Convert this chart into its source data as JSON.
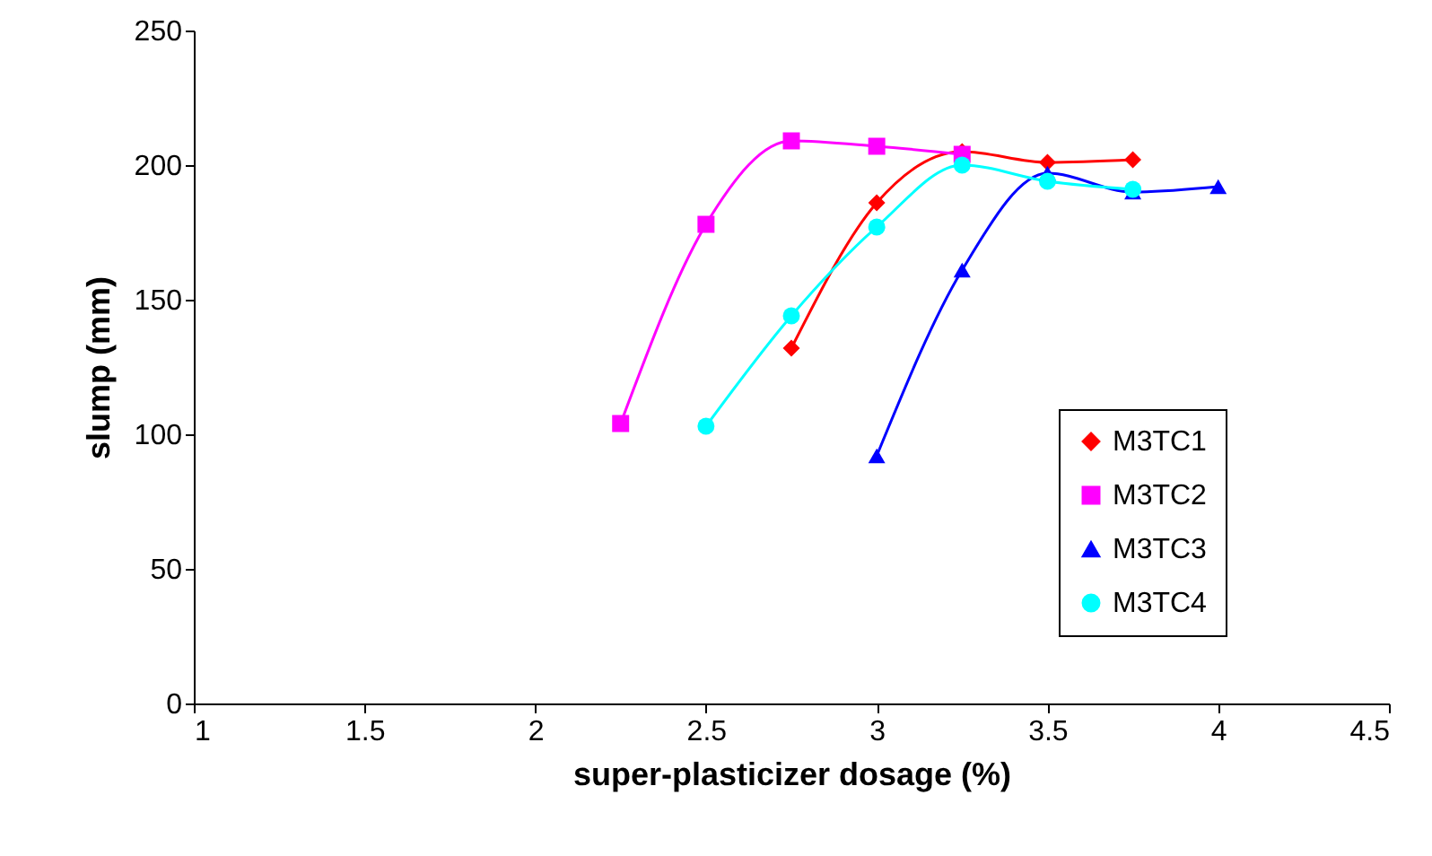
{
  "chart_data": {
    "type": "line",
    "xlabel": "super-plasticizer dosage (%)",
    "ylabel": "slump (mm)",
    "xlim": [
      1,
      4.5
    ],
    "xticks": [
      1,
      1.5,
      2,
      2.5,
      3,
      3.5,
      4,
      4.5
    ],
    "ylim": [
      0,
      250
    ],
    "yticks": [
      0,
      50,
      100,
      150,
      200,
      250
    ],
    "legend": "bottom right",
    "line_style": "solid",
    "series": [
      {
        "name": "M3TC1",
        "color": "#ff0000",
        "marker": "diamond",
        "x": [
          2.75,
          3,
          3.25,
          3.5,
          3.75
        ],
        "values": [
          132,
          186,
          205,
          201,
          202
        ]
      },
      {
        "name": "M3TC2",
        "color": "#ff00ff",
        "marker": "square",
        "x": [
          2.25,
          2.5,
          2.75,
          3,
          3.25
        ],
        "values": [
          104,
          178,
          209,
          207,
          204
        ]
      },
      {
        "name": "M3TC3",
        "color": "#0000ff",
        "marker": "triangle",
        "x": [
          3,
          3.25,
          3.5,
          3.75,
          4
        ],
        "values": [
          92,
          161,
          197,
          190,
          192
        ]
      },
      {
        "name": "M3TC4",
        "color": "#00ffff",
        "marker": "circle",
        "x": [
          2.5,
          2.75,
          3,
          3.25,
          3.5,
          3.75
        ],
        "values": [
          103,
          144,
          177,
          200,
          194,
          191
        ]
      }
    ]
  }
}
